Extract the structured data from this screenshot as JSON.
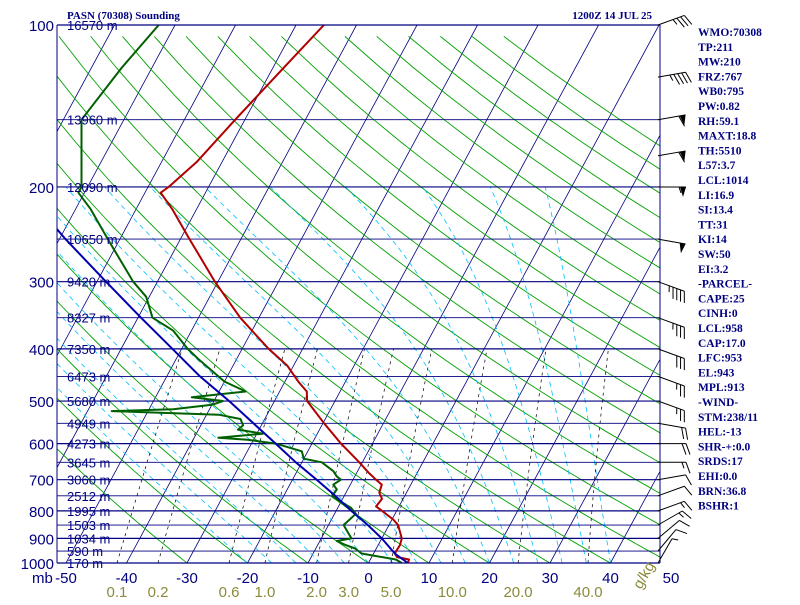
{
  "chart_data": {
    "type": "skew-t",
    "title_left": "PASN (70308) Sounding",
    "title_right": "1200Z 14 JUL 25",
    "p_label": "mb",
    "mix_unit": "g/kg",
    "ylim": [
      1000,
      100
    ],
    "xlim": [
      -50,
      50
    ],
    "pressure_ticks": [
      "100",
      "200",
      "300",
      "400",
      "500",
      "600",
      "700",
      "800",
      "900",
      "1000"
    ],
    "temp_ticks": [
      "-50",
      "-40",
      "-30",
      "-20",
      "-10",
      "0",
      "10",
      "20",
      "30",
      "40",
      "50"
    ],
    "mix_ticks": [
      "0.1",
      "0.2",
      "0.6",
      "1.0",
      "2.0",
      "3.0",
      "5.0",
      "10.0",
      "20.0",
      "40.0"
    ],
    "height_levels": [
      {
        "label": "16570 m",
        "p": 100
      },
      {
        "label": "13960 m",
        "p": 150
      },
      {
        "label": "12090 m",
        "p": 200
      },
      {
        "label": "10650 m",
        "p": 250
      },
      {
        "label": "9420 m",
        "p": 300
      },
      {
        "label": "8327 m",
        "p": 350
      },
      {
        "label": "7350 m",
        "p": 400
      },
      {
        "label": "6473 m",
        "p": 450
      },
      {
        "label": "5680 m",
        "p": 500
      },
      {
        "label": "4949 m",
        "p": 550
      },
      {
        "label": "4273 m",
        "p": 600
      },
      {
        "label": "3645 m",
        "p": 650
      },
      {
        "label": "3060 m",
        "p": 700
      },
      {
        "label": "2512 m",
        "p": 750
      },
      {
        "label": "1995 m",
        "p": 800
      },
      {
        "label": "1503 m",
        "p": 850
      },
      {
        "label": "1034 m",
        "p": 900
      },
      {
        "label": "590 m",
        "p": 950
      },
      {
        "label": "170 m",
        "p": 1000
      }
    ],
    "series": [
      {
        "key": "temperature",
        "color": "#b00000",
        "points": [
          [
            1000,
            6.5
          ],
          [
            985,
            6.4
          ],
          [
            975,
            4.2
          ],
          [
            960,
            3.5
          ],
          [
            925,
            3.6
          ],
          [
            900,
            3.3
          ],
          [
            850,
            1.5
          ],
          [
            830,
            0.2
          ],
          [
            800,
            -2.4
          ],
          [
            785,
            -3.8
          ],
          [
            760,
            -3.5
          ],
          [
            740,
            -4.5
          ],
          [
            715,
            -4.8
          ],
          [
            700,
            -6.2
          ],
          [
            680,
            -8.0
          ],
          [
            650,
            -10.5
          ],
          [
            600,
            -15.2
          ],
          [
            550,
            -19.8
          ],
          [
            500,
            -24.6
          ],
          [
            480,
            -25.5
          ],
          [
            460,
            -27.8
          ],
          [
            430,
            -31.0
          ],
          [
            400,
            -35.6
          ],
          [
            380,
            -38.5
          ],
          [
            350,
            -43.1
          ],
          [
            300,
            -50.5
          ],
          [
            250,
            -58.5
          ],
          [
            220,
            -64.0
          ],
          [
            205,
            -67.4
          ],
          [
            200,
            -66.6
          ],
          [
            180,
            -64.2
          ],
          [
            150,
            -61.6
          ],
          [
            120,
            -58.2
          ],
          [
            100,
            -55.4
          ]
        ]
      },
      {
        "key": "dewpoint",
        "color": "#006000",
        "points": [
          [
            1000,
            5.5
          ],
          [
            985,
            4.2
          ],
          [
            960,
            -2.0
          ],
          [
            940,
            -3.5
          ],
          [
            925,
            -5.5
          ],
          [
            910,
            -7.2
          ],
          [
            900,
            -5.0
          ],
          [
            880,
            -6.0
          ],
          [
            850,
            -7.5
          ],
          [
            830,
            -7.0
          ],
          [
            810,
            -6.5
          ],
          [
            790,
            -7.8
          ],
          [
            770,
            -10.0
          ],
          [
            750,
            -12.0
          ],
          [
            730,
            -11.8
          ],
          [
            715,
            -12.8
          ],
          [
            700,
            -12.0
          ],
          [
            690,
            -13.0
          ],
          [
            675,
            -14.0
          ],
          [
            650,
            -16.7
          ],
          [
            640,
            -20.0
          ],
          [
            620,
            -21.0
          ],
          [
            600,
            -26.0
          ],
          [
            590,
            -31.0
          ],
          [
            585,
            -36.0
          ],
          [
            575,
            -29.0
          ],
          [
            565,
            -33.5
          ],
          [
            555,
            -33.0
          ],
          [
            540,
            -34.0
          ],
          [
            530,
            -38.0
          ],
          [
            522,
            -56.0
          ],
          [
            518,
            -46.0
          ],
          [
            508,
            -40.0
          ],
          [
            500,
            -38.5
          ],
          [
            492,
            -44.0
          ],
          [
            480,
            -35.6
          ],
          [
            460,
            -40.0
          ],
          [
            420,
            -46.0
          ],
          [
            400,
            -49.0
          ],
          [
            370,
            -53.0
          ],
          [
            350,
            -57.6
          ],
          [
            320,
            -60.5
          ],
          [
            300,
            -64.0
          ],
          [
            250,
            -72.0
          ],
          [
            220,
            -77.5
          ],
          [
            205,
            -81.0
          ],
          [
            200,
            -81.0
          ],
          [
            150,
            -87.0
          ],
          [
            120,
            -85.0
          ],
          [
            100,
            -82.7
          ]
        ]
      },
      {
        "key": "parcel",
        "color": "#0000b0",
        "points": [
          [
            1000,
            6.5
          ],
          [
            960,
            3.5
          ],
          [
            900,
            0.0
          ],
          [
            850,
            -3.5
          ],
          [
            800,
            -7.5
          ],
          [
            750,
            -11.5
          ],
          [
            700,
            -16.0
          ],
          [
            650,
            -21.0
          ],
          [
            600,
            -26.0
          ],
          [
            550,
            -31.5
          ],
          [
            500,
            -37.5
          ],
          [
            450,
            -44.5
          ],
          [
            400,
            -51.5
          ],
          [
            350,
            -59.5
          ],
          [
            300,
            -68.5
          ],
          [
            250,
            -79.0
          ],
          [
            200,
            -91.0
          ],
          [
            160,
            -102.0
          ],
          [
            130,
            -112.0
          ]
        ]
      }
    ],
    "wind_barbs": [
      {
        "p": 1000,
        "dir": 210,
        "spd": 5
      },
      {
        "p": 950,
        "dir": 220,
        "spd": 10
      },
      {
        "p": 900,
        "dir": 230,
        "spd": 10
      },
      {
        "p": 850,
        "dir": 240,
        "spd": 15
      },
      {
        "p": 800,
        "dir": 250,
        "spd": 15
      },
      {
        "p": 750,
        "dir": 250,
        "spd": 10
      },
      {
        "p": 700,
        "dir": 260,
        "spd": 10
      },
      {
        "p": 650,
        "dir": 270,
        "spd": 15
      },
      {
        "p": 600,
        "dir": 270,
        "spd": 20
      },
      {
        "p": 550,
        "dir": 280,
        "spd": 20
      },
      {
        "p": 500,
        "dir": 290,
        "spd": 25
      },
      {
        "p": 450,
        "dir": 290,
        "spd": 25
      },
      {
        "p": 400,
        "dir": 290,
        "spd": 30
      },
      {
        "p": 350,
        "dir": 290,
        "spd": 35
      },
      {
        "p": 300,
        "dir": 290,
        "spd": 45
      },
      {
        "p": 250,
        "dir": 280,
        "spd": 50
      },
      {
        "p": 200,
        "dir": 270,
        "spd": 55
      },
      {
        "p": 175,
        "dir": 260,
        "spd": 60
      },
      {
        "p": 150,
        "dir": 260,
        "spd": 60
      },
      {
        "p": 125,
        "dir": 260,
        "spd": 45
      },
      {
        "p": 100,
        "dir": 250,
        "spd": 35
      }
    ],
    "colors": {
      "frame": "#000080",
      "isobar": "#000080",
      "isotherm": "#000080",
      "dry_adiabat": "#00a000",
      "moist_adiabat": "#00bfff",
      "mixing_ratio": "#000000",
      "mix_label": "#8b8b3a",
      "wind": "#000000",
      "text": "#000080"
    }
  },
  "indices": [
    "WMO:70308",
    "TP:211",
    "MW:210",
    "FRZ:767",
    "WB0:795",
    "PW:0.82",
    "RH:59.1",
    "MAXT:18.8",
    "TH:5510",
    "L57:3.7",
    "LCL:1014",
    "LI:16.9",
    "SI:13.4",
    "TT:31",
    "KI:14",
    "SW:50",
    "EI:3.2",
    "-PARCEL-",
    "CAPE:25",
    "CINH:0",
    "LCL:958",
    "CAP:17.0",
    "LFC:953",
    "EL:943",
    "MPL:913",
    "-WIND-",
    "STM:238/11",
    "HEL:-13",
    "SHR-+:0.0",
    "SRDS:17",
    "EHI:0.0",
    "BRN:36.8",
    "BSHR:1"
  ]
}
